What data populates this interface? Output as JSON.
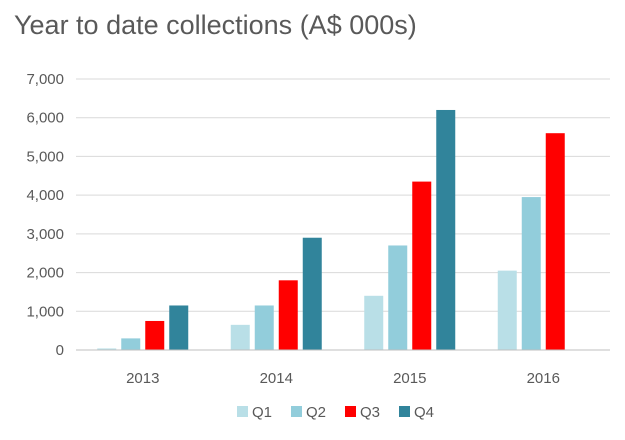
{
  "chart_data": {
    "type": "bar",
    "title": "Year to date collections (A$ 000s)",
    "xlabel": "",
    "ylabel": "",
    "categories": [
      "2013",
      "2014",
      "2015",
      "2016"
    ],
    "ylim": [
      0,
      7000
    ],
    "yticks": [
      0,
      1000,
      2000,
      3000,
      4000,
      5000,
      6000,
      7000
    ],
    "ytick_labels": [
      "0",
      "1,000",
      "2,000",
      "3,000",
      "4,000",
      "5,000",
      "6,000",
      "7,000"
    ],
    "grid": true,
    "legend": "bottom",
    "series": [
      {
        "name": "Q1",
        "color": "#b9dfe7",
        "values": [
          40,
          650,
          1400,
          2050
        ]
      },
      {
        "name": "Q2",
        "color": "#92cddb",
        "values": [
          300,
          1150,
          2700,
          3950
        ]
      },
      {
        "name": "Q3",
        "color": "#ff0000",
        "values": [
          750,
          1800,
          4350,
          5600
        ]
      },
      {
        "name": "Q4",
        "color": "#31849b",
        "values": [
          1150,
          2900,
          6200,
          null
        ]
      }
    ]
  }
}
